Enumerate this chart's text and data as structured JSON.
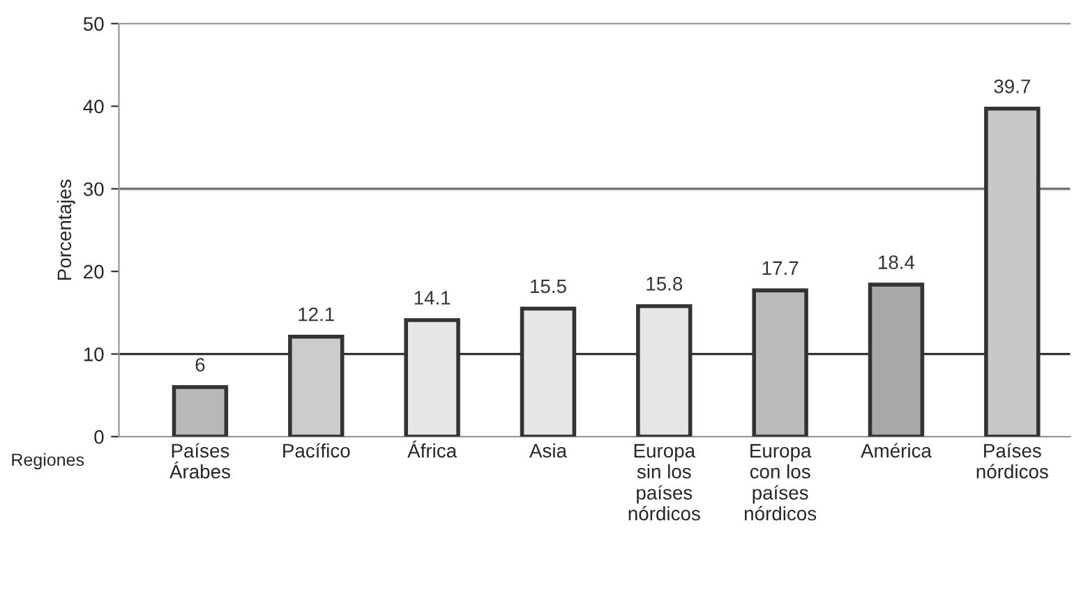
{
  "chart_data": {
    "type": "bar",
    "xlabel": "Regiones",
    "ylabel": "Porcentajes",
    "categories": [
      "Países\nÁrabes",
      "Pacífico",
      "África",
      "Asia",
      "Europa\nsin los\npaíses\nnórdicos",
      "Europa\ncon los\npaíses\nnórdicos",
      "América",
      "Países\nnórdicos"
    ],
    "values": [
      6,
      12.1,
      14.1,
      15.5,
      15.8,
      17.7,
      18.4,
      39.7
    ],
    "colors": [
      "#b8b8b8",
      "#cccccc",
      "#e6e6e6",
      "#e6e6e6",
      "#e6e6e6",
      "#bbbbbb",
      "#a8a8a8",
      "#c8c8c8"
    ],
    "data_labels": true,
    "ylim": [
      0,
      50
    ],
    "yticks": [
      0,
      10,
      20,
      30,
      40,
      50
    ],
    "ref_lines": [
      {
        "axis": "y",
        "value": 10,
        "color": "#333333"
      },
      {
        "axis": "y",
        "value": 30,
        "color": "#777777"
      }
    ],
    "grid": false,
    "legend": false
  }
}
